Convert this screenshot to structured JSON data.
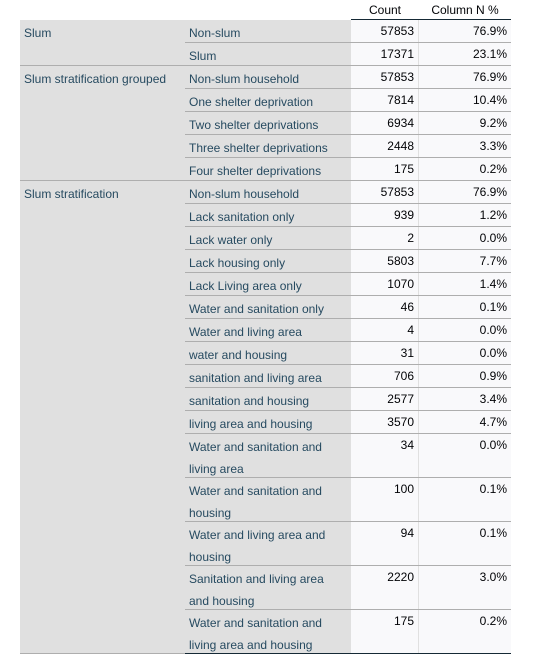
{
  "header": {
    "count": "Count",
    "column_pct": "Column N %"
  },
  "groups": [
    {
      "label": "Slum",
      "rows": [
        {
          "category": "Non-slum",
          "count": "57853",
          "pct": "76.9%"
        },
        {
          "category": "Slum",
          "count": "17371",
          "pct": "23.1%"
        }
      ]
    },
    {
      "label": "Slum stratification grouped",
      "rows": [
        {
          "category": "Non-slum household",
          "count": "57853",
          "pct": "76.9%"
        },
        {
          "category": "One shelter deprivation",
          "count": "7814",
          "pct": "10.4%"
        },
        {
          "category": "Two shelter deprivations",
          "count": "6934",
          "pct": "9.2%"
        },
        {
          "category": "Three shelter deprivations",
          "count": "2448",
          "pct": "3.3%"
        },
        {
          "category": "Four shelter deprivations",
          "count": "175",
          "pct": "0.2%"
        }
      ]
    },
    {
      "label": "Slum stratification",
      "rows": [
        {
          "category": "Non-slum household",
          "count": "57853",
          "pct": "76.9%"
        },
        {
          "category": "Lack sanitation only",
          "count": "939",
          "pct": "1.2%"
        },
        {
          "category": "Lack water only",
          "count": "2",
          "pct": "0.0%"
        },
        {
          "category": "Lack housing only",
          "count": "5803",
          "pct": "7.7%"
        },
        {
          "category": "Lack Living area only",
          "count": "1070",
          "pct": "1.4%"
        },
        {
          "category": "Water and sanitation only",
          "count": "46",
          "pct": "0.1%"
        },
        {
          "category": "Water and living area",
          "count": "4",
          "pct": "0.0%"
        },
        {
          "category": "water and housing",
          "count": "31",
          "pct": "0.0%"
        },
        {
          "category": "sanitation and living area",
          "count": "706",
          "pct": "0.9%"
        },
        {
          "category": "sanitation and housing",
          "count": "2577",
          "pct": "3.4%"
        },
        {
          "category": "living area and housing",
          "count": "3570",
          "pct": "4.7%"
        },
        {
          "category": "Water and sanitation and living area",
          "count": "34",
          "pct": "0.0%"
        },
        {
          "category": "Water and sanitation and housing",
          "count": "100",
          "pct": "0.1%"
        },
        {
          "category": "Water and living area and housing",
          "count": "94",
          "pct": "0.1%"
        },
        {
          "category": "Sanitation and living area and housing",
          "count": "2220",
          "pct": "3.0%"
        },
        {
          "category": "Water and sanitation and living area and housing",
          "count": "175",
          "pct": "0.2%"
        }
      ]
    }
  ]
}
